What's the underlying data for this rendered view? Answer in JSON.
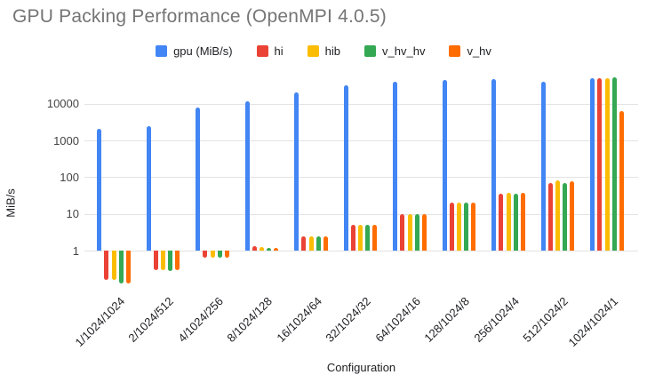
{
  "title": "GPU Packing Performance (OpenMPI 4.0.5)",
  "axes": {
    "y_title": "MiB/s",
    "x_title": "Configuration"
  },
  "colors": {
    "gpu": "#4285F4",
    "hi": "#EA4335",
    "hib": "#FBBC04",
    "v_hv_hv": "#34A853",
    "v_hv": "#FF6D00",
    "gridline": "#e3e3e3",
    "title_text": "#757575",
    "axis_text": "#202124"
  },
  "chart_data": {
    "type": "bar",
    "title": "GPU Packing Performance (OpenMPI 4.0.5)",
    "xlabel": "Configuration",
    "ylabel": "MiB/s",
    "y_scale": "log",
    "ylim": [
      0.1,
      60000
    ],
    "grid": "horizontal",
    "legend_position": "top",
    "y_ticks": [
      1,
      10,
      100,
      1000,
      10000
    ],
    "y_tick_labels": [
      "1",
      "10",
      "100",
      "1000",
      "10000"
    ],
    "categories": [
      "1/1024/1024",
      "2/1024/512",
      "4/1024/256",
      "8/1024/128",
      "16/1024/64",
      "32/1024/32",
      "64/1024/16",
      "128/1024/8",
      "256/1024/4",
      "512/1024/2",
      "1024/1024/1"
    ],
    "series": [
      {
        "name": "gpu (MiB/s)",
        "color": "#4285F4",
        "values": [
          2100,
          2400,
          8000,
          11500,
          21000,
          32000,
          40000,
          44000,
          47000,
          40000,
          50000
        ]
      },
      {
        "name": "hi",
        "color": "#EA4335",
        "values": [
          0.16,
          0.3,
          0.65,
          1.3,
          2.4,
          5.0,
          10,
          20,
          35,
          70,
          51000
        ]
      },
      {
        "name": "hib",
        "color": "#FBBC04",
        "values": [
          0.16,
          0.3,
          0.65,
          1.25,
          2.4,
          5.1,
          10,
          20,
          37,
          80,
          50000
        ]
      },
      {
        "name": "v_hv_hv",
        "color": "#34A853",
        "values": [
          0.13,
          0.28,
          0.65,
          1.2,
          2.4,
          5.1,
          10,
          20,
          36,
          71,
          54000
        ]
      },
      {
        "name": "v_hv",
        "color": "#FF6D00",
        "values": [
          0.13,
          0.3,
          0.65,
          1.2,
          2.5,
          5.1,
          10,
          20,
          38,
          78,
          6300
        ]
      }
    ]
  }
}
